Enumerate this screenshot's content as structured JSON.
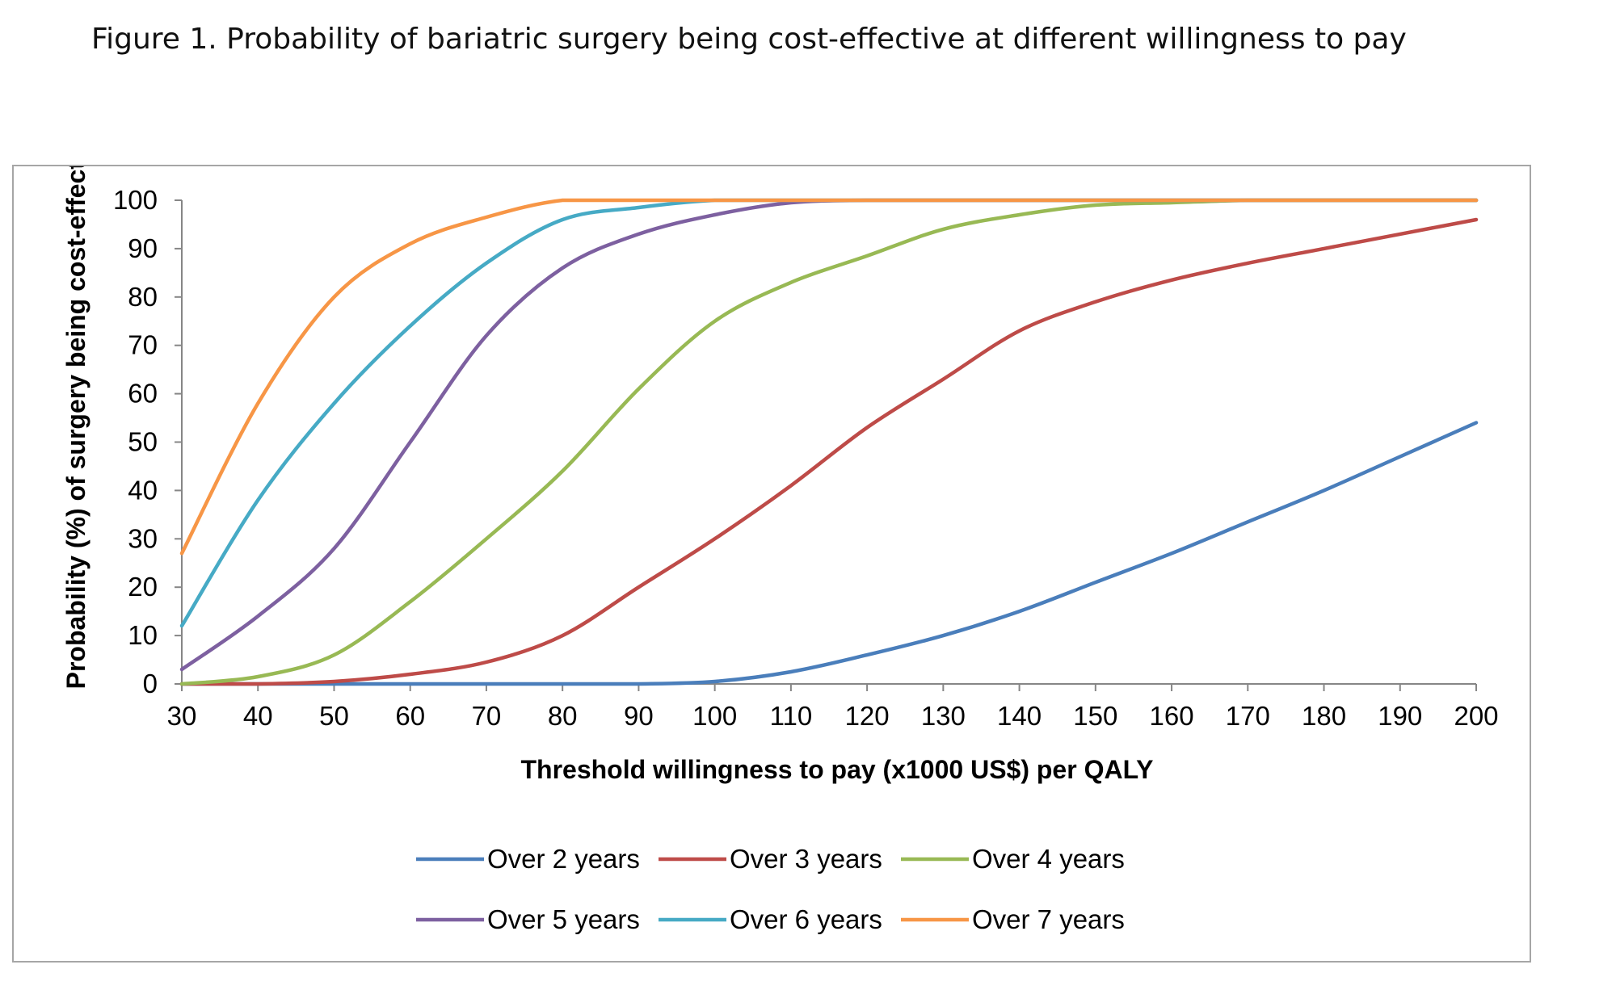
{
  "figure_title": "Figure 1.  Probability of bariatric surgery being cost-effective at different willingness to pay",
  "chart_data": {
    "type": "line",
    "title": "Figure 1.  Probability of bariatric surgery being cost-effective at different willingness to pay",
    "xlabel": "Threshold  willingness to pay (x1000 US$) per QALY",
    "ylabel": "Probability  (%)  of surgery being cost-effective",
    "xlim": [
      30,
      200
    ],
    "ylim": [
      0,
      100
    ],
    "xticks": [
      30,
      40,
      50,
      60,
      70,
      80,
      90,
      100,
      110,
      120,
      130,
      140,
      150,
      160,
      170,
      180,
      190,
      200
    ],
    "yticks": [
      0,
      10,
      20,
      30,
      40,
      50,
      60,
      70,
      80,
      90,
      100
    ],
    "grid": false,
    "legend_position": "bottom",
    "x": [
      30,
      40,
      50,
      60,
      70,
      80,
      90,
      100,
      110,
      120,
      130,
      140,
      150,
      160,
      170,
      180,
      190,
      200
    ],
    "series": [
      {
        "name": "Over 2 years",
        "color": "#4a7ebb",
        "values": [
          0,
          0,
          0,
          0,
          0,
          0,
          0,
          0.5,
          2.5,
          6,
          10,
          15,
          21,
          27,
          33.5,
          40,
          47,
          54
        ]
      },
      {
        "name": "Over 3 years",
        "color": "#be4b48",
        "values": [
          0,
          0,
          0.5,
          2,
          4.5,
          10,
          20,
          30,
          41,
          53,
          63,
          73,
          79,
          83.5,
          87,
          90,
          93,
          96
        ]
      },
      {
        "name": "Over 4 years",
        "color": "#98b954",
        "values": [
          0,
          1.5,
          6,
          17,
          30,
          44,
          61,
          75,
          83,
          88.5,
          94,
          97,
          99,
          99.5,
          100,
          100,
          100,
          100
        ]
      },
      {
        "name": "Over 5 years",
        "color": "#7d60a0",
        "values": [
          3,
          14,
          28,
          50,
          72,
          86,
          93,
          97,
          99.5,
          100,
          100,
          100,
          100,
          100,
          100,
          100,
          100,
          100
        ]
      },
      {
        "name": "Over 6 years",
        "color": "#46aac5",
        "values": [
          12,
          38,
          58,
          74,
          87,
          96,
          98.5,
          100,
          100,
          100,
          100,
          100,
          100,
          100,
          100,
          100,
          100,
          100
        ]
      },
      {
        "name": "Over 7 years",
        "color": "#f79646",
        "values": [
          27,
          58,
          80,
          91,
          96.5,
          100,
          100,
          100,
          100,
          100,
          100,
          100,
          100,
          100,
          100,
          100,
          100,
          100
        ]
      }
    ]
  }
}
